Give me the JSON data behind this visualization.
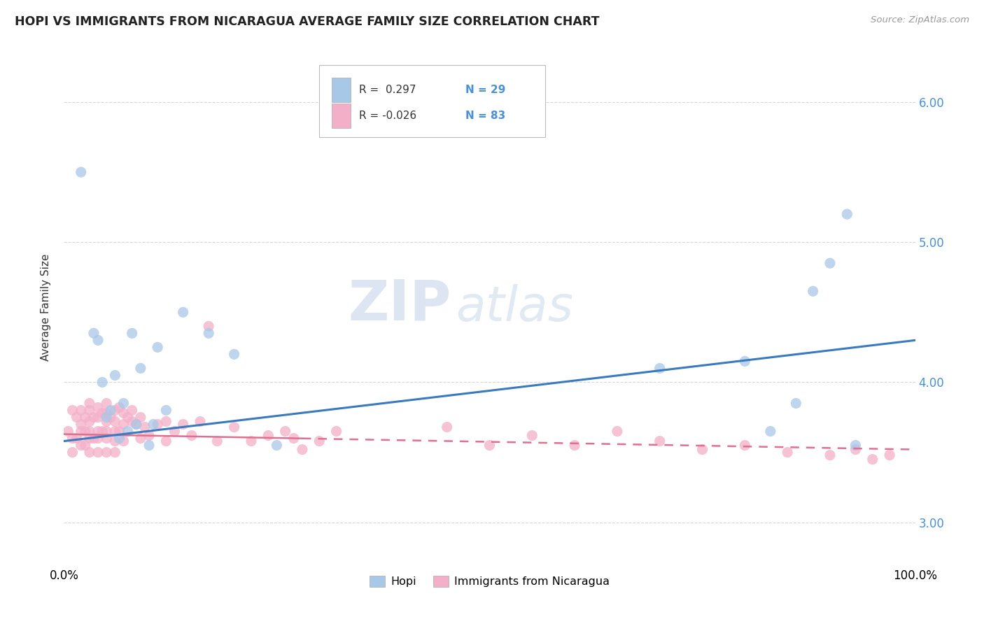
{
  "title": "HOPI VS IMMIGRANTS FROM NICARAGUA AVERAGE FAMILY SIZE CORRELATION CHART",
  "source": "Source: ZipAtlas.com",
  "ylabel": "Average Family Size",
  "xlim": [
    0.0,
    1.0
  ],
  "ylim": [
    2.72,
    6.35
  ],
  "yticks": [
    3.0,
    4.0,
    5.0,
    6.0
  ],
  "xtick_labels": [
    "0.0%",
    "100.0%"
  ],
  "ytick_labels_right": [
    "3.00",
    "4.00",
    "5.00",
    "6.00"
  ],
  "hopi_color": "#a8c8e8",
  "nicaragua_color": "#f4afc8",
  "hopi_line_color": "#3a7abf",
  "nicaragua_line_color": "#e07090",
  "background_color": "#ffffff",
  "grid_color": "#cccccc",
  "watermark_zip": "ZIP",
  "watermark_atlas": "atlas",
  "legend_r_hopi": "0.297",
  "legend_n_hopi": "29",
  "legend_r_nicaragua": "-0.026",
  "legend_n_nicaragua": "83",
  "hopi_scatter_x": [
    0.02,
    0.035,
    0.04,
    0.045,
    0.05,
    0.055,
    0.06,
    0.065,
    0.07,
    0.075,
    0.08,
    0.085,
    0.09,
    0.1,
    0.105,
    0.11,
    0.12,
    0.14,
    0.17,
    0.2,
    0.25,
    0.7,
    0.8,
    0.83,
    0.86,
    0.88,
    0.9,
    0.92,
    0.93
  ],
  "hopi_scatter_y": [
    5.5,
    4.35,
    4.3,
    4.0,
    3.75,
    3.8,
    4.05,
    3.6,
    3.85,
    3.65,
    4.35,
    3.7,
    4.1,
    3.55,
    3.7,
    4.25,
    3.8,
    4.5,
    4.35,
    4.2,
    3.55,
    4.1,
    4.15,
    3.65,
    3.85,
    4.65,
    4.85,
    5.2,
    3.55
  ],
  "nicaragua_scatter_x": [
    0.005,
    0.01,
    0.01,
    0.01,
    0.015,
    0.015,
    0.02,
    0.02,
    0.02,
    0.02,
    0.025,
    0.025,
    0.025,
    0.03,
    0.03,
    0.03,
    0.03,
    0.03,
    0.03,
    0.035,
    0.035,
    0.04,
    0.04,
    0.04,
    0.04,
    0.04,
    0.045,
    0.045,
    0.05,
    0.05,
    0.05,
    0.05,
    0.05,
    0.05,
    0.055,
    0.06,
    0.06,
    0.06,
    0.06,
    0.06,
    0.065,
    0.065,
    0.07,
    0.07,
    0.07,
    0.075,
    0.08,
    0.08,
    0.085,
    0.09,
    0.09,
    0.095,
    0.1,
    0.11,
    0.12,
    0.12,
    0.13,
    0.14,
    0.15,
    0.16,
    0.17,
    0.18,
    0.2,
    0.22,
    0.24,
    0.26,
    0.27,
    0.28,
    0.3,
    0.32,
    0.45,
    0.5,
    0.55,
    0.6,
    0.65,
    0.7,
    0.75,
    0.8,
    0.85,
    0.9,
    0.93,
    0.95,
    0.97
  ],
  "nicaragua_scatter_y": [
    3.65,
    3.8,
    3.6,
    3.5,
    3.75,
    3.6,
    3.8,
    3.7,
    3.65,
    3.55,
    3.75,
    3.65,
    3.55,
    3.85,
    3.8,
    3.72,
    3.65,
    3.6,
    3.5,
    3.75,
    3.6,
    3.82,
    3.75,
    3.65,
    3.6,
    3.5,
    3.78,
    3.65,
    3.85,
    3.78,
    3.72,
    3.65,
    3.6,
    3.5,
    3.75,
    3.8,
    3.72,
    3.65,
    3.58,
    3.5,
    3.82,
    3.65,
    3.78,
    3.7,
    3.58,
    3.75,
    3.8,
    3.72,
    3.7,
    3.75,
    3.6,
    3.68,
    3.62,
    3.7,
    3.72,
    3.58,
    3.65,
    3.7,
    3.62,
    3.72,
    4.4,
    3.58,
    3.68,
    3.58,
    3.62,
    3.65,
    3.6,
    3.52,
    3.58,
    3.65,
    3.68,
    3.55,
    3.62,
    3.55,
    3.65,
    3.58,
    3.52,
    3.55,
    3.5,
    3.48,
    3.52,
    3.45,
    3.48
  ]
}
